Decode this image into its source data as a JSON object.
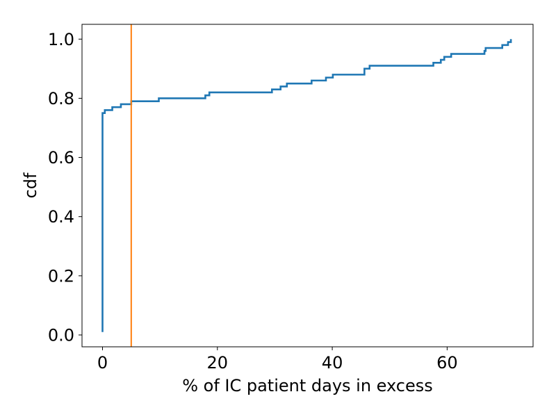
{
  "chart_data": {
    "type": "line",
    "title": "",
    "xlabel": "% of IC patient days in excess",
    "ylabel": "cdf",
    "xlim": [
      -3.57,
      74.96
    ],
    "ylim": [
      -0.04,
      1.05
    ],
    "xticks": [
      0,
      20,
      40,
      60
    ],
    "xtick_labels": [
      "0",
      "20",
      "40",
      "60"
    ],
    "yticks": [
      0.0,
      0.2,
      0.4,
      0.6,
      0.8,
      1.0
    ],
    "ytick_labels": [
      "0.0",
      "0.2",
      "0.4",
      "0.6",
      "0.8",
      "1.0"
    ],
    "grid": false,
    "series": [
      {
        "color": "#1f77b4",
        "step": "post",
        "x": [
          0,
          0,
          0.4,
          0.8,
          1.7,
          3.2,
          5.0,
          9.8,
          17.9,
          18.6,
          29.5,
          31.0,
          32.1,
          36.4,
          38.9,
          40.1,
          45.6,
          46.5,
          57.6,
          58.9,
          59.5,
          60.7,
          66.5,
          66.7,
          69.6,
          70.6,
          71.1
        ],
        "y": [
          0.01,
          0.75,
          0.76,
          0.76,
          0.77,
          0.78,
          0.79,
          0.8,
          0.81,
          0.82,
          0.83,
          0.84,
          0.85,
          0.86,
          0.87,
          0.88,
          0.9,
          0.91,
          0.92,
          0.93,
          0.94,
          0.95,
          0.96,
          0.97,
          0.98,
          0.99,
          1.0
        ]
      }
    ],
    "vlines": [
      {
        "x": 5.0,
        "color": "#ff7f0e"
      }
    ]
  }
}
